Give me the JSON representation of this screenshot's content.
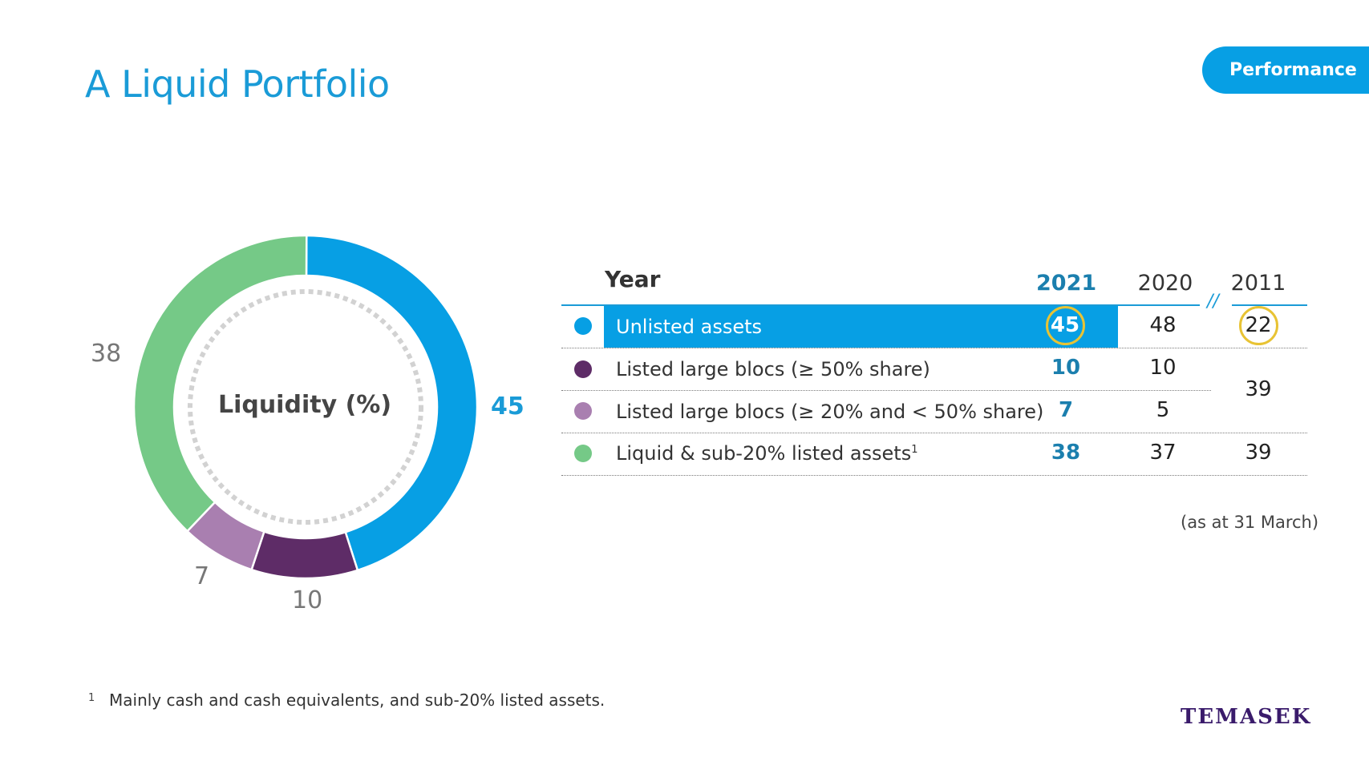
{
  "slide": {
    "title": "A Liquid Portfolio",
    "section_tab": "Performance",
    "footnote_marker": "1",
    "footnote": "Mainly cash and cash equivalents, and sub-20% listed assets.",
    "as_at": "(as at 31 March)",
    "logo_text": "TEMASEK"
  },
  "colors": {
    "accent": "#079fe4",
    "unlisted": "#079fe4",
    "large_bloc_50": "#5e2c67",
    "large_bloc_20": "#a97fb0",
    "liquid": "#75c987",
    "highlight_circle": "#e8c334"
  },
  "chart_data": {
    "type": "pie",
    "title": "Liquidity (%)",
    "series": [
      {
        "name": "Unlisted assets",
        "value": 45,
        "label": "45",
        "color": "#079fe4"
      },
      {
        "name": "Listed large blocs (≥ 50% share)",
        "value": 10,
        "label": "10",
        "color": "#5e2c67"
      },
      {
        "name": "Listed large blocs (≥ 20% and < 50% share)",
        "value": 7,
        "label": "7",
        "color": "#a97fb0"
      },
      {
        "name": "Liquid & sub-20% listed assets",
        "value": 38,
        "label": "38",
        "color": "#75c987"
      }
    ]
  },
  "table": {
    "header_label": "Year",
    "years": [
      "2021",
      "2020",
      "2011"
    ],
    "break_mark": "//",
    "rows": [
      {
        "label": "Unlisted assets",
        "sup": "",
        "v2021": "45",
        "v2020": "48",
        "v2011": "22"
      },
      {
        "label": "Listed large blocs (≥ 50% share)",
        "sup": "",
        "v2021": "10",
        "v2020": "10",
        "v2011": ""
      },
      {
        "label": "Listed large blocs (≥ 20% and < 50% share)",
        "sup": "",
        "v2021": "7",
        "v2020": "5",
        "v2011": ""
      },
      {
        "label": "Liquid & sub-20% listed assets",
        "sup": "1",
        "v2021": "38",
        "v2020": "37",
        "v2011": "39"
      }
    ],
    "merged_2011_value": "39"
  }
}
